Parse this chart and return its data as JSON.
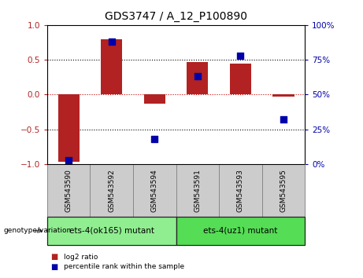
{
  "title": "GDS3747 / A_12_P100890",
  "samples": [
    "GSM543590",
    "GSM543592",
    "GSM543594",
    "GSM543591",
    "GSM543593",
    "GSM543595"
  ],
  "log2_ratio": [
    -0.97,
    0.8,
    -0.13,
    0.47,
    0.44,
    -0.03
  ],
  "percentile_rank": [
    3,
    88,
    18,
    63,
    78,
    32
  ],
  "groups": [
    {
      "label": "ets-4(ok165) mutant",
      "indices": [
        0,
        1,
        2
      ],
      "color": "#90ee90"
    },
    {
      "label": "ets-4(uz1) mutant",
      "indices": [
        3,
        4,
        5
      ],
      "color": "#55dd55"
    }
  ],
  "bar_color": "#b22222",
  "dot_color": "#0000aa",
  "ylim_left": [
    -1,
    1
  ],
  "ylim_right": [
    0,
    100
  ],
  "yticks_left": [
    -1,
    -0.5,
    0,
    0.5,
    1
  ],
  "yticks_right": [
    0,
    25,
    50,
    75,
    100
  ],
  "hlines": [
    -0.5,
    0,
    0.5
  ],
  "bar_width": 0.5,
  "dot_size": 30,
  "legend_items": [
    {
      "label": "log2 ratio",
      "color": "#b22222"
    },
    {
      "label": "percentile rank within the sample",
      "color": "#0000aa"
    }
  ],
  "label_box_color": "#cccccc",
  "label_box_edge": "#888888",
  "group_edge_color": "#222222"
}
